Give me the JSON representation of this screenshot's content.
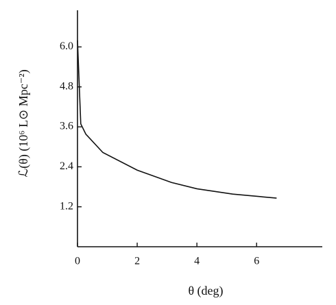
{
  "chart_data": {
    "type": "line",
    "x_label": "θ (deg)",
    "y_label": "ℒ(θ)   (10⁶ L⊙ Mpc⁻²)",
    "x": [
      0,
      0.11,
      0.28,
      0.85,
      2.0,
      3.15,
      4.0,
      5.2,
      6.67
    ],
    "series": [
      {
        "color": "#111111",
        "values": [
          6.2,
          3.69,
          3.38,
          2.83,
          2.3,
          1.93,
          1.74,
          1.58,
          1.46
        ]
      }
    ],
    "xlim": [
      0,
      8.2
    ],
    "ylim": [
      0,
      7.1
    ],
    "xticks": [
      0,
      2,
      4,
      6
    ],
    "yticks": [
      1.2,
      2.4,
      3.6,
      4.8,
      {
        "value": 6,
        "label": "6.0"
      }
    ]
  }
}
